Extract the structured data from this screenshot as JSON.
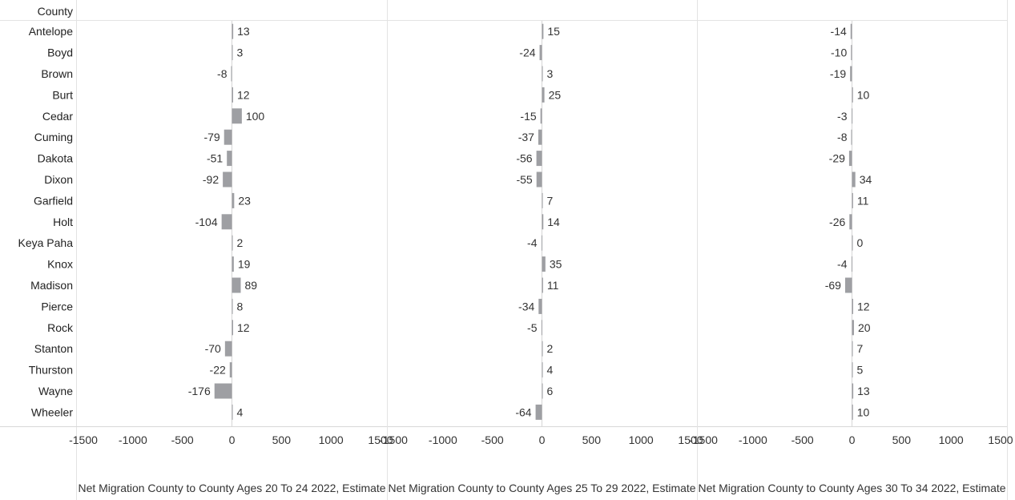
{
  "row_header": "County",
  "bar_color": "#9e9fa3",
  "chart_data": {
    "type": "bar",
    "orientation": "horizontal",
    "categories": [
      "Antelope",
      "Boyd",
      "Brown",
      "Burt",
      "Cedar",
      "Cuming",
      "Dakota",
      "Dixon",
      "Garfield",
      "Holt",
      "Keya Paha",
      "Knox",
      "Madison",
      "Pierce",
      "Rock",
      "Stanton",
      "Thurston",
      "Wayne",
      "Wheeler"
    ],
    "xlim": [
      -1500,
      1500
    ],
    "x_ticks": [
      "-1500",
      "-1000",
      "-500",
      "0",
      "500",
      "1000",
      "1500"
    ],
    "series": [
      {
        "name": "Net Migration County to County Ages 20 To 24 2022, Estimate",
        "values": [
          13,
          3,
          -8,
          12,
          100,
          -79,
          -51,
          -92,
          23,
          -104,
          2,
          19,
          89,
          8,
          12,
          -70,
          -22,
          -176,
          4
        ]
      },
      {
        "name": "Net Migration County to County Ages 25 To 29 2022, Estimate",
        "values": [
          15,
          -24,
          3,
          25,
          -15,
          -37,
          -56,
          -55,
          7,
          14,
          -4,
          35,
          11,
          -34,
          -5,
          2,
          4,
          6,
          -64
        ]
      },
      {
        "name": "Net Migration County to County Ages 30 To 34 2022, Estimate",
        "values": [
          -14,
          -10,
          -19,
          10,
          -3,
          -8,
          -29,
          34,
          11,
          -26,
          0,
          -4,
          -69,
          12,
          20,
          7,
          5,
          13,
          10
        ]
      }
    ]
  }
}
